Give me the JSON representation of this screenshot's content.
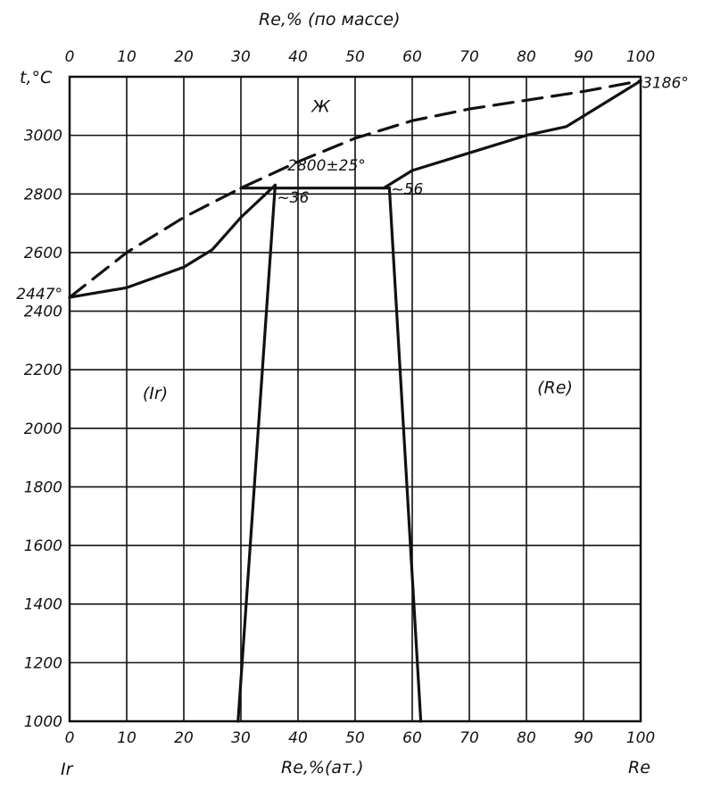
{
  "chart_data": {
    "type": "line",
    "title": "",
    "xlabel_bottom": "Re,%(ат.)",
    "xlabel_top": "Re,% (по массе)",
    "ylabel": "t,°C",
    "xlim": [
      0,
      100
    ],
    "ylim": [
      1000,
      3200
    ],
    "grid": true,
    "x_ticks_bottom": [
      "0",
      "10",
      "20",
      "30",
      "40",
      "50",
      "60",
      "70",
      "80",
      "90",
      "100"
    ],
    "x_ticks_top": [
      "0",
      "10",
      "20",
      "30",
      "40",
      "50",
      "60",
      "70",
      "80",
      "90",
      "100"
    ],
    "y_ticks": [
      "3000",
      "2800",
      "2600",
      "2400",
      "2200",
      "2000",
      "1800",
      "1600",
      "1400",
      "1200",
      "1000"
    ],
    "left_element": "Ir",
    "right_element": "Re",
    "series": [
      {
        "style": "dashed",
        "points": [
          [
            0,
            2447
          ],
          [
            10,
            2600
          ],
          [
            20,
            2720
          ],
          [
            30,
            2820
          ],
          [
            40,
            2910
          ],
          [
            50,
            2990
          ],
          [
            60,
            3050
          ],
          [
            70,
            3090
          ],
          [
            80,
            3120
          ],
          [
            90,
            3150
          ],
          [
            100,
            3186
          ]
        ]
      },
      {
        "style": "solid",
        "points": [
          [
            0,
            2447
          ],
          [
            10,
            2480
          ],
          [
            20,
            2550
          ],
          [
            25,
            2610
          ],
          [
            30,
            2720
          ],
          [
            36,
            2830
          ]
        ]
      },
      {
        "style": "solid",
        "points": [
          [
            55,
            2820
          ],
          [
            60,
            2880
          ],
          [
            70,
            2940
          ],
          [
            80,
            3000
          ],
          [
            87,
            3030
          ],
          [
            92,
            3090
          ],
          [
            100,
            3186
          ]
        ]
      },
      {
        "style": "solid",
        "points": [
          [
            30,
            2820
          ],
          [
            56,
            2820
          ]
        ]
      },
      {
        "style": "solid",
        "points": [
          [
            36,
            2830
          ],
          [
            29.5,
            1000
          ]
        ]
      },
      {
        "style": "solid",
        "points": [
          [
            56,
            2820
          ],
          [
            61.5,
            1000
          ]
        ]
      }
    ],
    "annotations": [
      {
        "text": "2447°",
        "x": 0,
        "y": 2447
      },
      {
        "text": "3186°",
        "x": 100,
        "y": 3186
      },
      {
        "text": "Ж",
        "x": 44,
        "y": 3080
      },
      {
        "text": "2800±25°",
        "x": 45,
        "y": 2880
      },
      {
        "text": "~36",
        "x": 36,
        "y": 2770
      },
      {
        "text": "~56",
        "x": 56,
        "y": 2800
      },
      {
        "text": "(Ir)",
        "x": 15,
        "y": 2100
      },
      {
        "text": "(Re)",
        "x": 85,
        "y": 2120
      }
    ]
  }
}
